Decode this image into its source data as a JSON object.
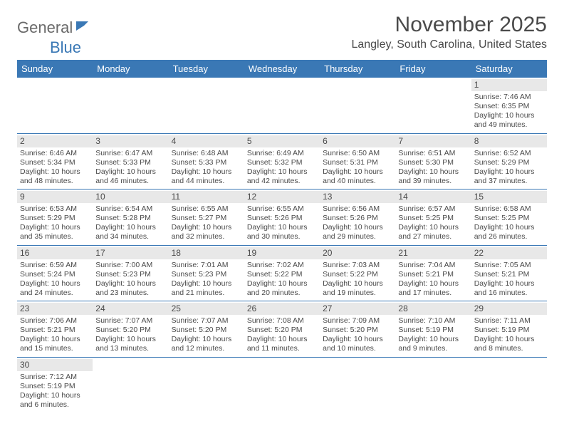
{
  "logo": {
    "text1": "General",
    "text2": "Blue"
  },
  "title": "November 2025",
  "location": "Langley, South Carolina, United States",
  "header_color": "#3a78b5",
  "border_color": "#3a78b5",
  "daynum_bg": "#e8e8e8",
  "columns": [
    "Sunday",
    "Monday",
    "Tuesday",
    "Wednesday",
    "Thursday",
    "Friday",
    "Saturday"
  ],
  "weeks": [
    [
      null,
      null,
      null,
      null,
      null,
      null,
      {
        "n": "1",
        "sunrise": "Sunrise: 7:46 AM",
        "sunset": "Sunset: 6:35 PM",
        "day1": "Daylight: 10 hours",
        "day2": "and 49 minutes."
      }
    ],
    [
      {
        "n": "2",
        "sunrise": "Sunrise: 6:46 AM",
        "sunset": "Sunset: 5:34 PM",
        "day1": "Daylight: 10 hours",
        "day2": "and 48 minutes."
      },
      {
        "n": "3",
        "sunrise": "Sunrise: 6:47 AM",
        "sunset": "Sunset: 5:33 PM",
        "day1": "Daylight: 10 hours",
        "day2": "and 46 minutes."
      },
      {
        "n": "4",
        "sunrise": "Sunrise: 6:48 AM",
        "sunset": "Sunset: 5:33 PM",
        "day1": "Daylight: 10 hours",
        "day2": "and 44 minutes."
      },
      {
        "n": "5",
        "sunrise": "Sunrise: 6:49 AM",
        "sunset": "Sunset: 5:32 PM",
        "day1": "Daylight: 10 hours",
        "day2": "and 42 minutes."
      },
      {
        "n": "6",
        "sunrise": "Sunrise: 6:50 AM",
        "sunset": "Sunset: 5:31 PM",
        "day1": "Daylight: 10 hours",
        "day2": "and 40 minutes."
      },
      {
        "n": "7",
        "sunrise": "Sunrise: 6:51 AM",
        "sunset": "Sunset: 5:30 PM",
        "day1": "Daylight: 10 hours",
        "day2": "and 39 minutes."
      },
      {
        "n": "8",
        "sunrise": "Sunrise: 6:52 AM",
        "sunset": "Sunset: 5:29 PM",
        "day1": "Daylight: 10 hours",
        "day2": "and 37 minutes."
      }
    ],
    [
      {
        "n": "9",
        "sunrise": "Sunrise: 6:53 AM",
        "sunset": "Sunset: 5:29 PM",
        "day1": "Daylight: 10 hours",
        "day2": "and 35 minutes."
      },
      {
        "n": "10",
        "sunrise": "Sunrise: 6:54 AM",
        "sunset": "Sunset: 5:28 PM",
        "day1": "Daylight: 10 hours",
        "day2": "and 34 minutes."
      },
      {
        "n": "11",
        "sunrise": "Sunrise: 6:55 AM",
        "sunset": "Sunset: 5:27 PM",
        "day1": "Daylight: 10 hours",
        "day2": "and 32 minutes."
      },
      {
        "n": "12",
        "sunrise": "Sunrise: 6:55 AM",
        "sunset": "Sunset: 5:26 PM",
        "day1": "Daylight: 10 hours",
        "day2": "and 30 minutes."
      },
      {
        "n": "13",
        "sunrise": "Sunrise: 6:56 AM",
        "sunset": "Sunset: 5:26 PM",
        "day1": "Daylight: 10 hours",
        "day2": "and 29 minutes."
      },
      {
        "n": "14",
        "sunrise": "Sunrise: 6:57 AM",
        "sunset": "Sunset: 5:25 PM",
        "day1": "Daylight: 10 hours",
        "day2": "and 27 minutes."
      },
      {
        "n": "15",
        "sunrise": "Sunrise: 6:58 AM",
        "sunset": "Sunset: 5:25 PM",
        "day1": "Daylight: 10 hours",
        "day2": "and 26 minutes."
      }
    ],
    [
      {
        "n": "16",
        "sunrise": "Sunrise: 6:59 AM",
        "sunset": "Sunset: 5:24 PM",
        "day1": "Daylight: 10 hours",
        "day2": "and 24 minutes."
      },
      {
        "n": "17",
        "sunrise": "Sunrise: 7:00 AM",
        "sunset": "Sunset: 5:23 PM",
        "day1": "Daylight: 10 hours",
        "day2": "and 23 minutes."
      },
      {
        "n": "18",
        "sunrise": "Sunrise: 7:01 AM",
        "sunset": "Sunset: 5:23 PM",
        "day1": "Daylight: 10 hours",
        "day2": "and 21 minutes."
      },
      {
        "n": "19",
        "sunrise": "Sunrise: 7:02 AM",
        "sunset": "Sunset: 5:22 PM",
        "day1": "Daylight: 10 hours",
        "day2": "and 20 minutes."
      },
      {
        "n": "20",
        "sunrise": "Sunrise: 7:03 AM",
        "sunset": "Sunset: 5:22 PM",
        "day1": "Daylight: 10 hours",
        "day2": "and 19 minutes."
      },
      {
        "n": "21",
        "sunrise": "Sunrise: 7:04 AM",
        "sunset": "Sunset: 5:21 PM",
        "day1": "Daylight: 10 hours",
        "day2": "and 17 minutes."
      },
      {
        "n": "22",
        "sunrise": "Sunrise: 7:05 AM",
        "sunset": "Sunset: 5:21 PM",
        "day1": "Daylight: 10 hours",
        "day2": "and 16 minutes."
      }
    ],
    [
      {
        "n": "23",
        "sunrise": "Sunrise: 7:06 AM",
        "sunset": "Sunset: 5:21 PM",
        "day1": "Daylight: 10 hours",
        "day2": "and 15 minutes."
      },
      {
        "n": "24",
        "sunrise": "Sunrise: 7:07 AM",
        "sunset": "Sunset: 5:20 PM",
        "day1": "Daylight: 10 hours",
        "day2": "and 13 minutes."
      },
      {
        "n": "25",
        "sunrise": "Sunrise: 7:07 AM",
        "sunset": "Sunset: 5:20 PM",
        "day1": "Daylight: 10 hours",
        "day2": "and 12 minutes."
      },
      {
        "n": "26",
        "sunrise": "Sunrise: 7:08 AM",
        "sunset": "Sunset: 5:20 PM",
        "day1": "Daylight: 10 hours",
        "day2": "and 11 minutes."
      },
      {
        "n": "27",
        "sunrise": "Sunrise: 7:09 AM",
        "sunset": "Sunset: 5:20 PM",
        "day1": "Daylight: 10 hours",
        "day2": "and 10 minutes."
      },
      {
        "n": "28",
        "sunrise": "Sunrise: 7:10 AM",
        "sunset": "Sunset: 5:19 PM",
        "day1": "Daylight: 10 hours",
        "day2": "and 9 minutes."
      },
      {
        "n": "29",
        "sunrise": "Sunrise: 7:11 AM",
        "sunset": "Sunset: 5:19 PM",
        "day1": "Daylight: 10 hours",
        "day2": "and 8 minutes."
      }
    ],
    [
      {
        "n": "30",
        "sunrise": "Sunrise: 7:12 AM",
        "sunset": "Sunset: 5:19 PM",
        "day1": "Daylight: 10 hours",
        "day2": "and 6 minutes."
      },
      null,
      null,
      null,
      null,
      null,
      null
    ]
  ]
}
